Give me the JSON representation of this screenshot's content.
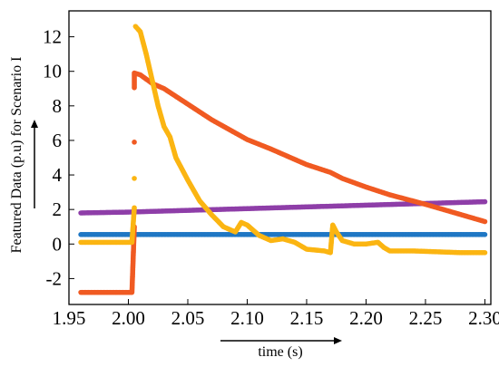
{
  "chart_data": {
    "type": "scatter",
    "xlabel": "time (s)",
    "ylabel": "Featured Data (p.u) for Scenario I",
    "xlim": [
      1.95,
      2.305
    ],
    "ylim": [
      -3.5,
      13.5
    ],
    "xticks": [
      1.95,
      2.0,
      2.05,
      2.1,
      2.15,
      2.2,
      2.25,
      2.3
    ],
    "xtick_labels": [
      "1.95",
      "2.00",
      "2.05",
      "2.10",
      "2.15",
      "2.20",
      "2.25",
      "2.30"
    ],
    "yticks": [
      -2,
      0,
      2,
      4,
      6,
      8,
      10,
      12
    ],
    "ytick_labels": [
      "-2",
      "0",
      "2",
      "4",
      "6",
      "8",
      "10",
      "12"
    ],
    "grid": false,
    "series": [
      {
        "color": "#1f77c4",
        "points": [
          [
            1.96,
            0.55
          ],
          [
            2.0,
            0.55
          ],
          [
            2.05,
            0.55
          ],
          [
            2.1,
            0.55
          ],
          [
            2.15,
            0.55
          ],
          [
            2.2,
            0.55
          ],
          [
            2.25,
            0.55
          ],
          [
            2.3,
            0.55
          ]
        ]
      },
      {
        "color": "#8e3ea8",
        "points": [
          [
            1.96,
            1.8
          ],
          [
            2.0,
            1.85
          ],
          [
            2.05,
            1.95
          ],
          [
            2.1,
            2.05
          ],
          [
            2.15,
            2.15
          ],
          [
            2.2,
            2.25
          ],
          [
            2.25,
            2.35
          ],
          [
            2.3,
            2.45
          ]
        ]
      },
      {
        "color": "#f05a22",
        "points": [
          [
            1.96,
            -2.8
          ],
          [
            2.003,
            -2.8
          ],
          [
            2.005,
            1.0
          ],
          [
            2.005,
            5.9
          ],
          [
            2.005,
            9.05
          ],
          [
            2.005,
            9.9
          ],
          [
            2.01,
            9.8
          ],
          [
            2.02,
            9.3
          ],
          [
            2.03,
            9.0
          ],
          [
            2.05,
            8.1
          ],
          [
            2.07,
            7.2
          ],
          [
            2.1,
            6.05
          ],
          [
            2.12,
            5.5
          ],
          [
            2.15,
            4.6
          ],
          [
            2.17,
            4.15
          ],
          [
            2.18,
            3.8
          ],
          [
            2.2,
            3.3
          ],
          [
            2.22,
            2.85
          ],
          [
            2.25,
            2.3
          ],
          [
            2.27,
            1.9
          ],
          [
            2.3,
            1.3
          ]
        ]
      },
      {
        "color": "#fbb512",
        "points": [
          [
            1.96,
            0.1
          ],
          [
            2.003,
            0.1
          ],
          [
            2.005,
            2.1
          ],
          [
            2.005,
            3.8
          ],
          [
            2.006,
            12.6
          ],
          [
            2.01,
            12.3
          ],
          [
            2.015,
            11.0
          ],
          [
            2.02,
            9.5
          ],
          [
            2.025,
            8.0
          ],
          [
            2.03,
            6.8
          ],
          [
            2.035,
            6.2
          ],
          [
            2.04,
            5.0
          ],
          [
            2.05,
            3.7
          ],
          [
            2.06,
            2.5
          ],
          [
            2.07,
            1.7
          ],
          [
            2.08,
            1.0
          ],
          [
            2.09,
            0.7
          ],
          [
            2.095,
            1.25
          ],
          [
            2.1,
            1.1
          ],
          [
            2.11,
            0.5
          ],
          [
            2.12,
            0.2
          ],
          [
            2.13,
            0.3
          ],
          [
            2.14,
            0.1
          ],
          [
            2.15,
            -0.3
          ],
          [
            2.165,
            -0.4
          ],
          [
            2.17,
            -0.5
          ],
          [
            2.172,
            1.1
          ],
          [
            2.175,
            0.7
          ],
          [
            2.18,
            0.2
          ],
          [
            2.19,
            0.0
          ],
          [
            2.2,
            0.0
          ],
          [
            2.21,
            0.1
          ],
          [
            2.215,
            -0.2
          ],
          [
            2.22,
            -0.4
          ],
          [
            2.24,
            -0.4
          ],
          [
            2.26,
            -0.45
          ],
          [
            2.28,
            -0.5
          ],
          [
            2.3,
            -0.5
          ]
        ]
      }
    ]
  }
}
